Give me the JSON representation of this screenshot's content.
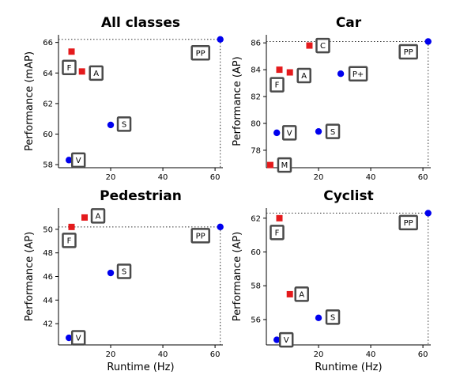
{
  "chart_data": [
    {
      "type": "scatter",
      "title": "All classes",
      "xlabel": "",
      "ylabel": "Performance (mAP)",
      "xlim": [
        0,
        63
      ],
      "ylim": [
        57.8,
        66.5
      ],
      "xticks": [
        "20",
        "40",
        "60"
      ],
      "yticks": [
        "58",
        "60",
        "62",
        "64",
        "66"
      ],
      "points": [
        {
          "x": 5,
          "y": 65.4,
          "color": "#e41a1c",
          "shape": "square",
          "label": "F"
        },
        {
          "x": 9,
          "y": 64.1,
          "color": "#e41a1c",
          "shape": "square",
          "label": "A"
        },
        {
          "x": 20,
          "y": 60.6,
          "color": "#0000ee",
          "shape": "circle",
          "label": "S"
        },
        {
          "x": 4,
          "y": 58.3,
          "color": "#0000ee",
          "shape": "circle",
          "label": "V"
        },
        {
          "x": 62,
          "y": 66.2,
          "color": "#0000ee",
          "shape": "circle",
          "label": "PP"
        }
      ],
      "reference_lines": {
        "x": 62,
        "y": 66.2
      }
    },
    {
      "type": "scatter",
      "title": "Car",
      "xlabel": "",
      "ylabel": "Performance (AP)",
      "xlim": [
        0,
        63
      ],
      "ylim": [
        76.7,
        86.6
      ],
      "xticks": [
        "20",
        "40",
        "60"
      ],
      "yticks": [
        "78",
        "80",
        "82",
        "84",
        "86"
      ],
      "points": [
        {
          "x": 16.5,
          "y": 85.8,
          "color": "#e41a1c",
          "shape": "square",
          "label": "C"
        },
        {
          "x": 5,
          "y": 84.0,
          "color": "#e41a1c",
          "shape": "square",
          "label": "F"
        },
        {
          "x": 9,
          "y": 83.8,
          "color": "#e41a1c",
          "shape": "square",
          "label": "A"
        },
        {
          "x": 28.5,
          "y": 83.7,
          "color": "#0000ee",
          "shape": "circle",
          "label": "P+"
        },
        {
          "x": 4,
          "y": 79.3,
          "color": "#0000ee",
          "shape": "circle",
          "label": "V"
        },
        {
          "x": 20,
          "y": 79.4,
          "color": "#0000ee",
          "shape": "circle",
          "label": "S"
        },
        {
          "x": 1.5,
          "y": 76.9,
          "color": "#e41a1c",
          "shape": "square",
          "label": "M"
        },
        {
          "x": 62,
          "y": 86.1,
          "color": "#0000ee",
          "shape": "circle",
          "label": "PP"
        }
      ],
      "reference_lines": {
        "x": 62,
        "y": 86.1
      }
    },
    {
      "type": "scatter",
      "title": "Pedestrian",
      "xlabel": "Runtime (Hz)",
      "ylabel": "Performance (AP)",
      "xlim": [
        0,
        63
      ],
      "ylim": [
        40.2,
        51.8
      ],
      "xticks": [
        "20",
        "40",
        "60"
      ],
      "yticks": [
        "42",
        "44",
        "46",
        "48",
        "50"
      ],
      "points": [
        {
          "x": 10,
          "y": 51.0,
          "color": "#e41a1c",
          "shape": "square",
          "label": "A"
        },
        {
          "x": 5,
          "y": 50.2,
          "color": "#e41a1c",
          "shape": "square",
          "label": "F"
        },
        {
          "x": 20,
          "y": 46.3,
          "color": "#0000ee",
          "shape": "circle",
          "label": "S"
        },
        {
          "x": 4,
          "y": 40.8,
          "color": "#0000ee",
          "shape": "circle",
          "label": "V"
        },
        {
          "x": 62,
          "y": 50.2,
          "color": "#0000ee",
          "shape": "circle",
          "label": "PP"
        }
      ],
      "reference_lines": {
        "x": 62,
        "y": 50.2
      }
    },
    {
      "type": "scatter",
      "title": "Cyclist",
      "xlabel": "Runtime (Hz)",
      "ylabel": "Performance (AP)",
      "xlim": [
        0,
        63
      ],
      "ylim": [
        54.5,
        62.6
      ],
      "xticks": [
        "20",
        "40",
        "60"
      ],
      "yticks": [
        "56",
        "58",
        "60",
        "62"
      ],
      "points": [
        {
          "x": 5,
          "y": 62.0,
          "color": "#e41a1c",
          "shape": "square",
          "label": "F"
        },
        {
          "x": 9,
          "y": 57.5,
          "color": "#e41a1c",
          "shape": "square",
          "label": "A"
        },
        {
          "x": 20,
          "y": 56.1,
          "color": "#0000ee",
          "shape": "circle",
          "label": "S"
        },
        {
          "x": 4,
          "y": 54.8,
          "color": "#0000ee",
          "shape": "circle",
          "label": "V"
        },
        {
          "x": 62,
          "y": 62.3,
          "color": "#0000ee",
          "shape": "circle",
          "label": "PP"
        }
      ],
      "reference_lines": {
        "x": 62,
        "y": 62.3
      }
    }
  ]
}
